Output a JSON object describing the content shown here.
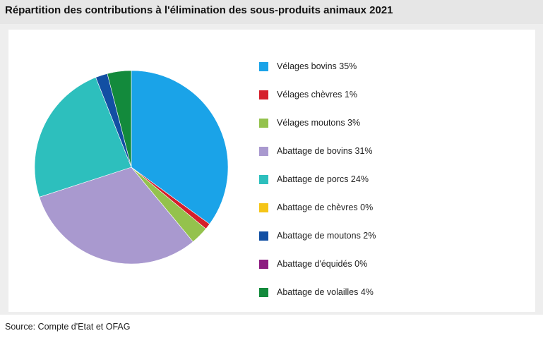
{
  "title": "Répartition des contributions à l'élimination des sous-produits animaux 2021",
  "source": "Source: Compte d'Etat et OFAG",
  "chart_data": {
    "type": "pie",
    "title": "Répartition des contributions à l'élimination des sous-produits animaux 2021",
    "legend_position": "right",
    "slices": [
      {
        "label": "Vélages bovins 35%",
        "value": 35,
        "color": "#1aa3e8"
      },
      {
        "label": "Vélages chèvres 1%",
        "value": 1,
        "color": "#d51f2b"
      },
      {
        "label": "Vélages moutons 3%",
        "value": 3,
        "color": "#94c24d"
      },
      {
        "label": "Abattage de bovins 31%",
        "value": 31,
        "color": "#a999cf"
      },
      {
        "label": "Abattage de porcs 24%",
        "value": 24,
        "color": "#2dbfbd"
      },
      {
        "label": "Abattage de chèvres 0%",
        "value": 0,
        "color": "#f5c518"
      },
      {
        "label": "Abattage de moutons 2%",
        "value": 2,
        "color": "#124fa3"
      },
      {
        "label": "Abattage d'équidés 0%",
        "value": 0,
        "color": "#8c1c80"
      },
      {
        "label": "Abattage de volailles 4%",
        "value": 4,
        "color": "#138a3c"
      }
    ]
  }
}
